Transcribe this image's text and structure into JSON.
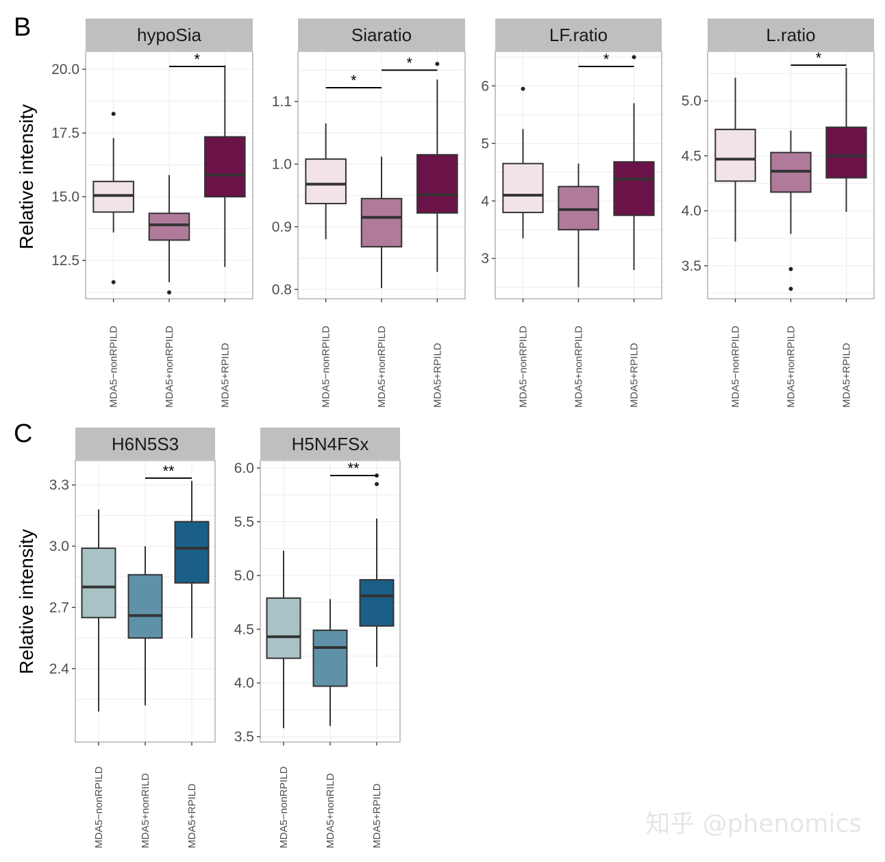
{
  "panel_letters": {
    "B": "B",
    "C": "C"
  },
  "ylabel": "Relative intensity",
  "watermark": "知乎 @phenomics",
  "chart_data": [
    {
      "type": "boxplot",
      "title": "hypoSia",
      "ylabel": "Relative intensity",
      "categories": [
        "MDA5−nonRPILD",
        "MDA5+nonRPILD",
        "MDA5+RPILD"
      ],
      "ylim": [
        11.0,
        20.7
      ],
      "yticks": [
        12.5,
        15.0,
        17.5,
        20.0
      ],
      "ytick_labels": [
        "12.5",
        "15.0",
        "17.5",
        "20.0"
      ],
      "boxes": [
        {
          "whisker_low": 13.6,
          "q1": 14.4,
          "median": 15.05,
          "q3": 15.6,
          "whisker_high": 17.3,
          "outliers": [
            18.25,
            11.65
          ]
        },
        {
          "whisker_low": 11.65,
          "q1": 13.3,
          "median": 13.9,
          "q3": 14.35,
          "whisker_high": 15.85,
          "outliers": [
            11.25
          ]
        },
        {
          "whisker_low": 12.25,
          "q1": 15.0,
          "median": 15.85,
          "q3": 17.35,
          "whisker_high": 20.15,
          "outliers": []
        }
      ],
      "significance": [
        {
          "from": 1,
          "to": 2,
          "label": "*"
        }
      ]
    },
    {
      "type": "boxplot",
      "title": "Siaratio",
      "ylabel": "Relative intensity",
      "categories": [
        "MDA5−nonRPILD",
        "MDA5+nonRPILD",
        "MDA5+RPILD"
      ],
      "ylim": [
        0.785,
        1.18
      ],
      "yticks": [
        0.8,
        0.9,
        1.0,
        1.1
      ],
      "ytick_labels": [
        "0.8",
        "0.9",
        "1.0",
        "1.1"
      ],
      "boxes": [
        {
          "whisker_low": 0.88,
          "q1": 0.937,
          "median": 0.968,
          "q3": 1.008,
          "whisker_high": 1.065,
          "outliers": []
        },
        {
          "whisker_low": 0.802,
          "q1": 0.868,
          "median": 0.915,
          "q3": 0.945,
          "whisker_high": 1.012,
          "outliers": []
        },
        {
          "whisker_low": 0.828,
          "q1": 0.922,
          "median": 0.951,
          "q3": 1.015,
          "whisker_high": 1.135,
          "outliers": [
            1.16
          ]
        }
      ],
      "significance": [
        {
          "from": 0,
          "to": 1,
          "label": "*"
        },
        {
          "from": 1,
          "to": 2,
          "label": "*"
        }
      ]
    },
    {
      "type": "boxplot",
      "title": "LF.ratio",
      "ylabel": "Relative intensity",
      "categories": [
        "MDA5−nonRPILD",
        "MDA5+nonRPILD",
        "MDA5+RPILD"
      ],
      "ylim": [
        2.3,
        6.6
      ],
      "yticks": [
        3,
        4,
        5,
        6
      ],
      "ytick_labels": [
        "3",
        "4",
        "5",
        "6"
      ],
      "boxes": [
        {
          "whisker_low": 3.35,
          "q1": 3.8,
          "median": 4.1,
          "q3": 4.65,
          "whisker_high": 5.25,
          "outliers": [
            5.95
          ]
        },
        {
          "whisker_low": 2.5,
          "q1": 3.5,
          "median": 3.85,
          "q3": 4.25,
          "whisker_high": 4.65,
          "outliers": []
        },
        {
          "whisker_low": 2.8,
          "q1": 3.75,
          "median": 4.38,
          "q3": 4.68,
          "whisker_high": 5.7,
          "outliers": [
            6.5
          ]
        }
      ],
      "significance": [
        {
          "from": 1,
          "to": 2,
          "label": "*"
        }
      ]
    },
    {
      "type": "boxplot",
      "title": "L.ratio",
      "ylabel": "Relative intensity",
      "categories": [
        "MDA5−nonRPILD",
        "MDA5+nonRPILD",
        "MDA5+RPILD"
      ],
      "ylim": [
        3.2,
        5.45
      ],
      "yticks": [
        3.5,
        4.0,
        4.5,
        5.0
      ],
      "ytick_labels": [
        "3.5",
        "4.0",
        "4.5",
        "5.0"
      ],
      "boxes": [
        {
          "whisker_low": 3.72,
          "q1": 4.27,
          "median": 4.47,
          "q3": 4.74,
          "whisker_high": 5.21,
          "outliers": []
        },
        {
          "whisker_low": 3.79,
          "q1": 4.17,
          "median": 4.36,
          "q3": 4.53,
          "whisker_high": 4.73,
          "outliers": [
            3.47,
            3.29
          ]
        },
        {
          "whisker_low": 3.99,
          "q1": 4.3,
          "median": 4.5,
          "q3": 4.76,
          "whisker_high": 5.3,
          "outliers": []
        }
      ],
      "significance": [
        {
          "from": 1,
          "to": 2,
          "label": "*"
        }
      ]
    },
    {
      "type": "boxplot",
      "title": "H6N5S3",
      "ylabel": "Relative intensity",
      "categories": [
        "MDA5−nonRPILD",
        "MDA5+nonRILD",
        "MDA5+RPILD"
      ],
      "ylim": [
        2.04,
        3.42
      ],
      "yticks": [
        2.4,
        2.7,
        3.0,
        3.3
      ],
      "ytick_labels": [
        "2.4",
        "2.7",
        "3.0",
        "3.3"
      ],
      "boxes": [
        {
          "whisker_low": 2.19,
          "q1": 2.65,
          "median": 2.8,
          "q3": 2.99,
          "whisker_high": 3.18,
          "outliers": []
        },
        {
          "whisker_low": 2.22,
          "q1": 2.55,
          "median": 2.66,
          "q3": 2.86,
          "whisker_high": 3.0,
          "outliers": []
        },
        {
          "whisker_low": 2.55,
          "q1": 2.82,
          "median": 2.99,
          "q3": 3.12,
          "whisker_high": 3.32,
          "outliers": []
        }
      ],
      "significance": [
        {
          "from": 1,
          "to": 2,
          "label": "**"
        }
      ]
    },
    {
      "type": "boxplot",
      "title": "H5N4FSx",
      "ylabel": "Relative intensity",
      "categories": [
        "MDA5−nonRPILD",
        "MDA5+nonRILD",
        "MDA5+RPILD"
      ],
      "ylim": [
        3.45,
        6.07
      ],
      "yticks": [
        3.5,
        4.0,
        4.5,
        5.0,
        5.5,
        6.0
      ],
      "ytick_labels": [
        "3.5",
        "4.0",
        "4.5",
        "5.0",
        "5.5",
        "6.0"
      ],
      "boxes": [
        {
          "whisker_low": 3.58,
          "q1": 4.23,
          "median": 4.43,
          "q3": 4.79,
          "whisker_high": 5.23,
          "outliers": []
        },
        {
          "whisker_low": 3.6,
          "q1": 3.97,
          "median": 4.33,
          "q3": 4.49,
          "whisker_high": 4.78,
          "outliers": []
        },
        {
          "whisker_low": 4.15,
          "q1": 4.53,
          "median": 4.81,
          "q3": 4.96,
          "whisker_high": 5.53,
          "outliers": [
            5.85,
            5.93
          ]
        }
      ],
      "significance": [
        {
          "from": 1,
          "to": 2,
          "label": "**"
        }
      ]
    }
  ],
  "colors": {
    "strip_fill": "#bfbfbf",
    "grid": "#ebebeb",
    "panel_border": "#b3b3b3",
    "outline": "#333333",
    "palette_b": [
      "#f1e3e9",
      "#b07a9b",
      "#6b1348"
    ],
    "palette_c": [
      "#a8c2c6",
      "#5f92a9",
      "#1b5f87"
    ]
  }
}
